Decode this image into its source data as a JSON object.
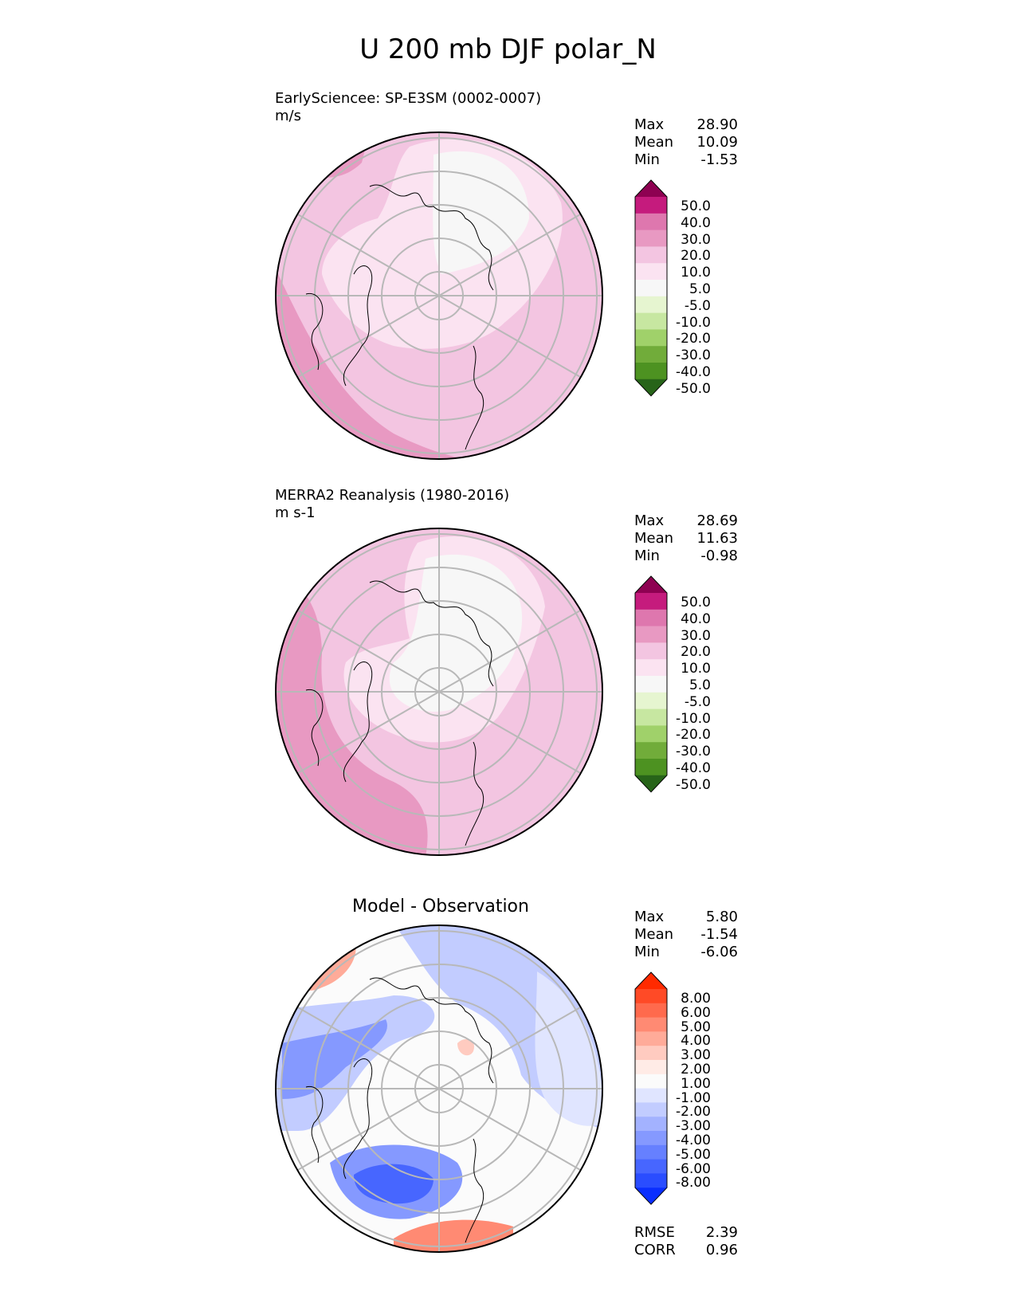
{
  "title": "U 200 mb DJF polar_N",
  "panels": [
    {
      "title": "EarlySciencee: SP-E3SM (0002-0007)",
      "units": "m/s",
      "stats": [
        {
          "label": "Max",
          "value": "28.90"
        },
        {
          "label": "Mean",
          "value": "10.09"
        },
        {
          "label": "Min",
          "value": "-1.53"
        }
      ],
      "colorbar": {
        "ticks": [
          "50.0",
          "40.0",
          "30.0",
          "20.0",
          "10.0",
          "5.0",
          "-5.0",
          "-10.0",
          "-20.0",
          "-30.0",
          "-40.0",
          "-50.0"
        ],
        "colors": [
          "#8e0152",
          "#c51b7d",
          "#de77ae",
          "#e899c2",
          "#f3c5e1",
          "#fbe3f1",
          "#f7f7f7",
          "#e6f5d0",
          "#c7e7a1",
          "#a0d16a",
          "#71ac3a",
          "#4d9221",
          "#276419"
        ]
      }
    },
    {
      "title": "MERRA2 Reanalysis (1980-2016)",
      "units": "m s-1",
      "stats": [
        {
          "label": "Max",
          "value": "28.69"
        },
        {
          "label": "Mean",
          "value": "11.63"
        },
        {
          "label": "Min",
          "value": "-0.98"
        }
      ],
      "colorbar": {
        "ticks": [
          "50.0",
          "40.0",
          "30.0",
          "20.0",
          "10.0",
          "5.0",
          "-5.0",
          "-10.0",
          "-20.0",
          "-30.0",
          "-40.0",
          "-50.0"
        ],
        "colors": [
          "#8e0152",
          "#c51b7d",
          "#de77ae",
          "#e899c2",
          "#f3c5e1",
          "#fbe3f1",
          "#f7f7f7",
          "#e6f5d0",
          "#c7e7a1",
          "#a0d16a",
          "#71ac3a",
          "#4d9221",
          "#276419"
        ]
      }
    },
    {
      "title": "Model - Observation",
      "units": "",
      "stats": [
        {
          "label": "Max",
          "value": "5.80"
        },
        {
          "label": "Mean",
          "value": "-1.54"
        },
        {
          "label": "Min",
          "value": "-6.06"
        }
      ],
      "metrics": [
        {
          "label": "RMSE",
          "value": "2.39"
        },
        {
          "label": "CORR",
          "value": "0.96"
        }
      ],
      "colorbar": {
        "ticks": [
          "8.00",
          "6.00",
          "5.00",
          "4.00",
          "3.00",
          "2.00",
          "1.00",
          "-1.00",
          "-2.00",
          "-3.00",
          "-4.00",
          "-5.00",
          "-6.00",
          "-8.00"
        ],
        "colors": [
          "#ff2a00",
          "#ff4a26",
          "#ff6a4d",
          "#ff8a73",
          "#ffab99",
          "#ffcbc0",
          "#ffebe6",
          "#fbfbfb",
          "#e0e5ff",
          "#c2ccff",
          "#a3b2ff",
          "#8599ff",
          "#6680ff",
          "#4766ff",
          "#2a4dff",
          "#0a2eff"
        ]
      }
    }
  ],
  "chart_data": [
    {
      "type": "heatmap",
      "projection": "north polar stereographic",
      "title": "EarlySciencee: SP-E3SM (0002-0007)",
      "units": "m/s",
      "max": 28.9,
      "mean": 10.09,
      "min": -1.53,
      "levels": [
        -50,
        -40,
        -30,
        -20,
        -10,
        -5,
        5,
        10,
        20,
        30,
        40,
        50
      ]
    },
    {
      "type": "heatmap",
      "projection": "north polar stereographic",
      "title": "MERRA2 Reanalysis (1980-2016)",
      "units": "m s-1",
      "max": 28.69,
      "mean": 11.63,
      "min": -0.98,
      "levels": [
        -50,
        -40,
        -30,
        -20,
        -10,
        -5,
        5,
        10,
        20,
        30,
        40,
        50
      ]
    },
    {
      "type": "heatmap",
      "projection": "north polar stereographic",
      "title": "Model - Observation",
      "max": 5.8,
      "mean": -1.54,
      "min": -6.06,
      "rmse": 2.39,
      "corr": 0.96,
      "levels": [
        -8,
        -6,
        -5,
        -4,
        -3,
        -2,
        -1,
        1,
        2,
        3,
        4,
        5,
        6,
        8
      ]
    }
  ]
}
